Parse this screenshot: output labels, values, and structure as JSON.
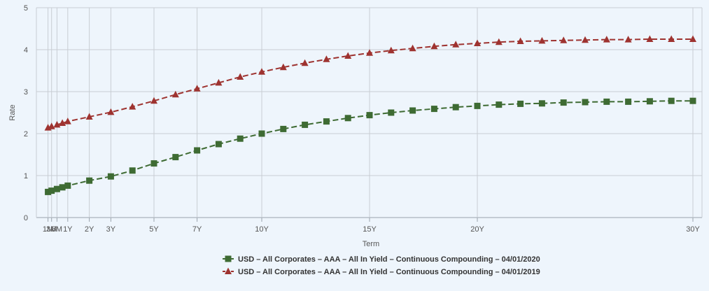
{
  "chart_data": {
    "type": "line",
    "xlabel": "Term",
    "ylabel": "Rate",
    "ylim": [
      0,
      5
    ],
    "yticks": [
      0,
      1,
      2,
      3,
      4,
      5
    ],
    "x_unit": "years",
    "xlim": [
      0,
      30
    ],
    "x_tick_labels": [
      {
        "label": "1M",
        "value": 0.0833
      },
      {
        "label": "3M",
        "value": 0.25
      },
      {
        "label": "6M",
        "value": 0.5
      },
      {
        "label": "1Y",
        "value": 1
      },
      {
        "label": "2Y",
        "value": 2
      },
      {
        "label": "3Y",
        "value": 3
      },
      {
        "label": "5Y",
        "value": 5
      },
      {
        "label": "7Y",
        "value": 7
      },
      {
        "label": "10Y",
        "value": 10
      },
      {
        "label": "15Y",
        "value": 15
      },
      {
        "label": "20Y",
        "value": 20
      },
      {
        "label": "30Y",
        "value": 30
      }
    ],
    "x": [
      0.0833,
      0.25,
      0.5,
      0.75,
      1,
      2,
      3,
      4,
      5,
      6,
      7,
      8,
      9,
      10,
      11,
      12,
      13,
      14,
      15,
      16,
      17,
      18,
      19,
      20,
      21,
      22,
      23,
      24,
      25,
      26,
      27,
      28,
      29,
      30
    ],
    "series": [
      {
        "name": "USD – All Corporates – AAA – All In Yield – Continuous Compounding – 04/01/2020",
        "color": "#3e6b33",
        "marker": "square",
        "values": [
          0.61,
          0.64,
          0.68,
          0.72,
          0.76,
          0.88,
          0.98,
          1.12,
          1.29,
          1.44,
          1.6,
          1.75,
          1.88,
          2.0,
          2.11,
          2.21,
          2.29,
          2.37,
          2.44,
          2.5,
          2.55,
          2.59,
          2.63,
          2.66,
          2.69,
          2.71,
          2.72,
          2.74,
          2.75,
          2.76,
          2.76,
          2.77,
          2.78,
          2.78
        ]
      },
      {
        "name": "USD – All Corporates – AAA – All In Yield – Continuous Compounding – 04/01/2019",
        "color": "#9e3330",
        "marker": "triangle",
        "values": [
          2.14,
          2.17,
          2.21,
          2.25,
          2.29,
          2.4,
          2.51,
          2.64,
          2.78,
          2.93,
          3.07,
          3.21,
          3.35,
          3.47,
          3.58,
          3.68,
          3.77,
          3.85,
          3.92,
          3.98,
          4.03,
          4.08,
          4.12,
          4.15,
          4.18,
          4.2,
          4.21,
          4.22,
          4.23,
          4.24,
          4.24,
          4.25,
          4.25,
          4.25
        ]
      }
    ],
    "grid": true,
    "legend_position": "bottom"
  }
}
